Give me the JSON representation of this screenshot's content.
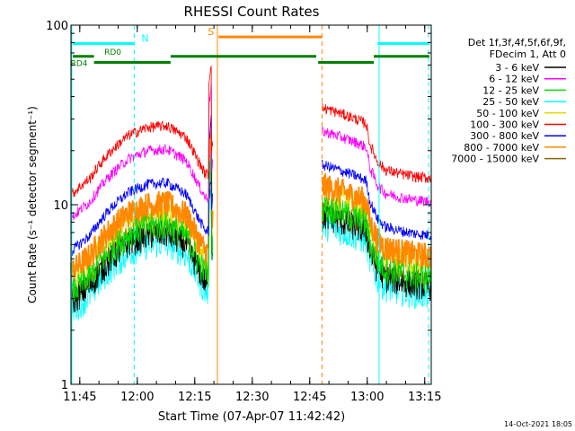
{
  "chart_data": {
    "type": "line",
    "title": "RHESSI Count Rates",
    "xlabel": "Start Time (07-Apr-07 11:42:42)",
    "ylabel": "Count Rate (s⁻¹ detector segment⁻¹)",
    "yscale": "log",
    "ylim": [
      1,
      100
    ],
    "xlim_minutes": [
      0,
      94
    ],
    "y_ticks": [
      {
        "value": 1,
        "label": "1"
      },
      {
        "value": 10,
        "label": "10"
      },
      {
        "value": 100,
        "label": "100"
      }
    ],
    "x_ticks": [
      {
        "minute": 2.3,
        "label": "11:45"
      },
      {
        "minute": 17.3,
        "label": "12:00"
      },
      {
        "minute": 32.3,
        "label": "12:15"
      },
      {
        "minute": 47.3,
        "label": "12:30"
      },
      {
        "minute": 62.3,
        "label": "12:45"
      },
      {
        "minute": 77.3,
        "label": "13:00"
      },
      {
        "minute": 92.3,
        "label": "13:15"
      }
    ],
    "legend_title": [
      "Det 1f,3f,4f,5f,6f,9f,",
      "FDecim 1, Att 0"
    ],
    "series": [
      {
        "name": "3 - 6 keV",
        "color": "#000000",
        "base": 6.8
      },
      {
        "name": "6 - 12 keV",
        "color": "#ff00ff",
        "base": 20.0
      },
      {
        "name": "12 - 25 keV",
        "color": "#00dd00",
        "base": 7.6
      },
      {
        "name": "25 - 50 keV",
        "color": "#00ffff",
        "base": 6.0
      },
      {
        "name": "50 - 100 keV",
        "color": "#dddd00",
        "base": 9.0
      },
      {
        "name": "100 - 300 keV",
        "color": "#ff0000",
        "base": 27.0
      },
      {
        "name": "300 - 800 keV",
        "color": "#0000ff",
        "base": 13.0
      },
      {
        "name": "800 - 7000 keV",
        "color": "#ff8800",
        "base": 10.0
      },
      {
        "name": "7000 - 15000 keV",
        "color": "#886600",
        "base": 7.2
      }
    ],
    "segments_minutes": [
      [
        0,
        37
      ],
      [
        65.5,
        94
      ]
    ],
    "profile": {
      "a_times": [
        0,
        5,
        10,
        15,
        20,
        25,
        30,
        33,
        35,
        36,
        37,
        65.5,
        67,
        70,
        74,
        78,
        82,
        86,
        90,
        94
      ],
      "a_factors": [
        0.42,
        0.52,
        0.72,
        0.9,
        1.0,
        1.02,
        0.88,
        0.66,
        0.55,
        0.55,
        0.85,
        1.0,
        0.95,
        0.88,
        0.72,
        0.55,
        0.5,
        0.48,
        0.47,
        0.47
      ],
      "b_times": [
        65.5,
        67,
        70,
        74,
        77,
        78,
        80,
        82,
        86,
        90,
        94
      ],
      "b_factors": [
        1.28,
        1.26,
        1.2,
        1.12,
        1.05,
        0.8,
        0.64,
        0.58,
        0.55,
        0.53,
        0.52
      ],
      "spike_minute": 36.3
    },
    "annotations": {
      "attenuator_bars": [
        {
          "label": "N",
          "color": "#00ffff",
          "start": 0.5,
          "end": 16.5,
          "level": 79
        },
        {
          "label": "S",
          "color": "#ff8800",
          "start": 38.5,
          "end": 65.5,
          "level": 86
        },
        {
          "color": "#00ffff",
          "start": 80,
          "end": 93.5,
          "level": 79
        }
      ],
      "decimation_bars": [
        {
          "label": "RD0",
          "color": "#008000",
          "start": 0.5,
          "end": 6,
          "level": 67
        },
        {
          "label": "RD4",
          "color": "#008000",
          "start": 6,
          "end": 26,
          "level": 62
        },
        {
          "color": "#008000",
          "start": 26,
          "end": 64,
          "level": 67
        },
        {
          "color": "#008000",
          "start": 64.5,
          "end": 79,
          "level": 62
        },
        {
          "color": "#008000",
          "start": 79,
          "end": 93.5,
          "level": 67
        }
      ],
      "vlines_solid": [
        {
          "minute": 0.2,
          "color": "#00ffff"
        },
        {
          "minute": 38.2,
          "color": "#ff8800"
        },
        {
          "minute": 80.4,
          "color": "#00ffff"
        }
      ],
      "vlines_dashed": [
        {
          "minute": 16.5,
          "color": "#00ffff"
        },
        {
          "minute": 65.5,
          "color": "#ff8800"
        },
        {
          "minute": 93.3,
          "color": "#00ffff"
        }
      ]
    }
  },
  "footer": {
    "timestamp": "14-Oct-2021 18:05"
  }
}
